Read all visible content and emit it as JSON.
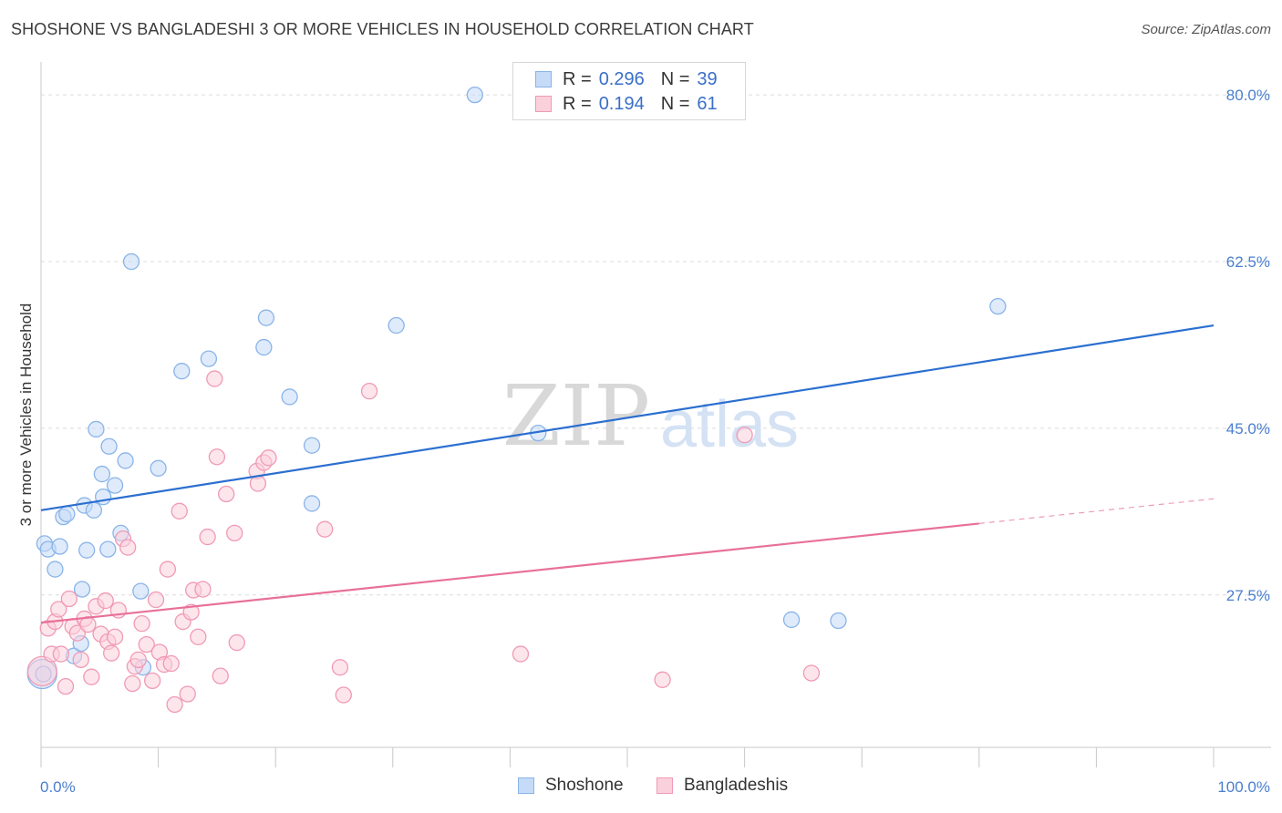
{
  "header": {
    "title": "SHOSHONE VS BANGLADESHI 3 OR MORE VEHICLES IN HOUSEHOLD CORRELATION CHART",
    "source": "Source: ZipAtlas.com"
  },
  "watermark": {
    "zip": "ZIP",
    "atlas": "atlas"
  },
  "legend": {
    "r_label": "R =",
    "n_label": "N =",
    "rows": [
      {
        "series": "Shoshone",
        "r": "0.296",
        "n": "39",
        "color": "#8ab4e8",
        "fill": "#c5dbf7"
      },
      {
        "series": "Bangladeshis",
        "r": "0.194",
        "n": "61",
        "color": "#f09ab5",
        "fill": "#fbd0dd"
      }
    ]
  },
  "chart_data": {
    "type": "scatter",
    "title": "SHOSHONE VS BANGLADESHI 3 OR MORE VEHICLES IN HOUSEHOLD CORRELATION CHART",
    "xlabel": "",
    "ylabel": "3 or more Vehicles in Household",
    "xlim": [
      0,
      100
    ],
    "ylim": [
      11.5,
      82.5
    ],
    "x_tick_labels": [
      "0.0%",
      "100.0%"
    ],
    "y_ticks": [
      27.5,
      45.0,
      62.5,
      80.0
    ],
    "y_tick_labels": [
      "27.5%",
      "45.0%",
      "62.5%",
      "80.0%"
    ],
    "grid": true,
    "series": [
      {
        "name": "Shoshone",
        "color": "#8ab4e8",
        "fill": "#c5dbf7",
        "line_color": "#2b6fd0",
        "trend": {
          "x0": 0,
          "y0": 36.4,
          "x1": 100,
          "y1": 55.8,
          "solid_until": 100
        },
        "points": [
          [
            0.2,
            19.2
          ],
          [
            0.3,
            32.9
          ],
          [
            0.6,
            32.3
          ],
          [
            1.2,
            30.2
          ],
          [
            1.6,
            32.6
          ],
          [
            1.9,
            35.7
          ],
          [
            2.2,
            36.0
          ],
          [
            2.8,
            21.1
          ],
          [
            3.4,
            22.4
          ],
          [
            3.5,
            28.1
          ],
          [
            3.7,
            36.9
          ],
          [
            3.9,
            32.2
          ],
          [
            4.5,
            36.4
          ],
          [
            4.7,
            44.9
          ],
          [
            5.2,
            40.2
          ],
          [
            5.3,
            37.8
          ],
          [
            5.7,
            32.3
          ],
          [
            5.8,
            43.1
          ],
          [
            6.3,
            39.0
          ],
          [
            6.8,
            34.0
          ],
          [
            7.2,
            41.6
          ],
          [
            7.7,
            62.5
          ],
          [
            8.5,
            27.9
          ],
          [
            8.7,
            19.9
          ],
          [
            10.0,
            40.8
          ],
          [
            12.0,
            51.0
          ],
          [
            14.3,
            52.3
          ],
          [
            19.0,
            53.5
          ],
          [
            19.2,
            56.6
          ],
          [
            21.2,
            48.3
          ],
          [
            23.1,
            43.2
          ],
          [
            23.1,
            37.1
          ],
          [
            30.3,
            55.8
          ],
          [
            37.0,
            80.0
          ],
          [
            42.4,
            44.5
          ],
          [
            64.0,
            24.9
          ],
          [
            68.0,
            24.8
          ],
          [
            81.6,
            57.8
          ]
        ],
        "big_point": [
          0.1,
          19.2
        ]
      },
      {
        "name": "Bangladeshis",
        "color": "#f09ab5",
        "fill": "#fbd0dd",
        "line_color": "#e8709a",
        "trend": {
          "x0": 0,
          "y0": 24.6,
          "x1": 100,
          "y1": 37.6,
          "solid_until": 80
        },
        "points": [
          [
            0.6,
            24.0
          ],
          [
            0.9,
            21.3
          ],
          [
            1.2,
            24.7
          ],
          [
            1.5,
            26.0
          ],
          [
            1.7,
            21.3
          ],
          [
            2.1,
            17.9
          ],
          [
            2.4,
            27.1
          ],
          [
            2.7,
            24.2
          ],
          [
            3.1,
            23.5
          ],
          [
            3.4,
            20.7
          ],
          [
            3.7,
            25.0
          ],
          [
            4.0,
            24.4
          ],
          [
            4.3,
            18.9
          ],
          [
            4.7,
            26.3
          ],
          [
            5.1,
            23.4
          ],
          [
            5.5,
            26.9
          ],
          [
            5.7,
            22.6
          ],
          [
            6.0,
            21.4
          ],
          [
            6.3,
            23.1
          ],
          [
            6.6,
            25.9
          ],
          [
            7.0,
            33.4
          ],
          [
            7.4,
            32.5
          ],
          [
            7.8,
            18.2
          ],
          [
            8.0,
            20.0
          ],
          [
            8.3,
            20.7
          ],
          [
            8.6,
            24.5
          ],
          [
            9.0,
            22.3
          ],
          [
            9.5,
            18.5
          ],
          [
            9.8,
            27.0
          ],
          [
            10.1,
            21.5
          ],
          [
            10.5,
            20.2
          ],
          [
            10.8,
            30.2
          ],
          [
            11.1,
            20.3
          ],
          [
            11.4,
            16.0
          ],
          [
            11.8,
            36.3
          ],
          [
            12.1,
            24.7
          ],
          [
            12.5,
            17.1
          ],
          [
            12.8,
            25.7
          ],
          [
            13.0,
            28.0
          ],
          [
            13.4,
            23.1
          ],
          [
            13.8,
            28.1
          ],
          [
            14.2,
            33.6
          ],
          [
            14.8,
            50.2
          ],
          [
            15.0,
            42.0
          ],
          [
            15.3,
            19.0
          ],
          [
            15.8,
            38.1
          ],
          [
            16.5,
            34.0
          ],
          [
            16.7,
            22.5
          ],
          [
            18.4,
            40.5
          ],
          [
            18.5,
            39.2
          ],
          [
            19.0,
            41.4
          ],
          [
            19.4,
            41.9
          ],
          [
            24.2,
            34.4
          ],
          [
            25.5,
            19.9
          ],
          [
            25.8,
            17.0
          ],
          [
            28.0,
            48.9
          ],
          [
            40.9,
            21.3
          ],
          [
            53.0,
            18.6
          ],
          [
            60.0,
            44.3
          ],
          [
            65.7,
            19.3
          ]
        ],
        "big_point": [
          0.1,
          19.5
        ]
      }
    ]
  },
  "bottom_legend": [
    {
      "label": "Shoshone"
    },
    {
      "label": "Bangladeshis"
    }
  ]
}
